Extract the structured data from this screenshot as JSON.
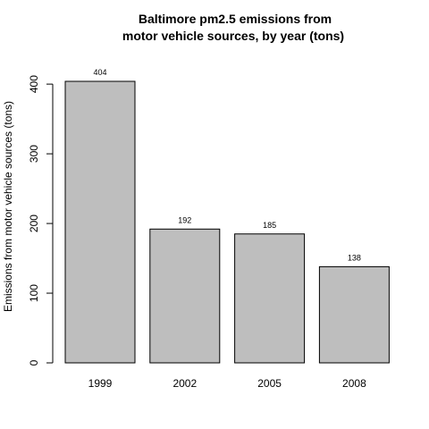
{
  "chart_data": {
    "type": "bar",
    "title_lines": [
      "Baltimore pm2.5 emissions from",
      "motor vehicle sources, by year (tons)"
    ],
    "xlabel": "",
    "ylabel": "Emissions from motor vehicle sources (tons)",
    "categories": [
      "1999",
      "2002",
      "2005",
      "2008"
    ],
    "values": [
      404,
      192,
      185,
      138
    ],
    "data_labels": [
      "404",
      "192",
      "185",
      "138"
    ],
    "yticks": [
      0,
      100,
      200,
      300,
      400
    ],
    "ytick_labels": [
      "0",
      "100",
      "200",
      "300",
      "400"
    ],
    "ylim": [
      0,
      404
    ],
    "grid": false,
    "legend": "none",
    "colors": {
      "bar_fill": "#bebebe",
      "bar_stroke": "#000000",
      "axis": "#000000",
      "background": "#ffffff"
    }
  }
}
